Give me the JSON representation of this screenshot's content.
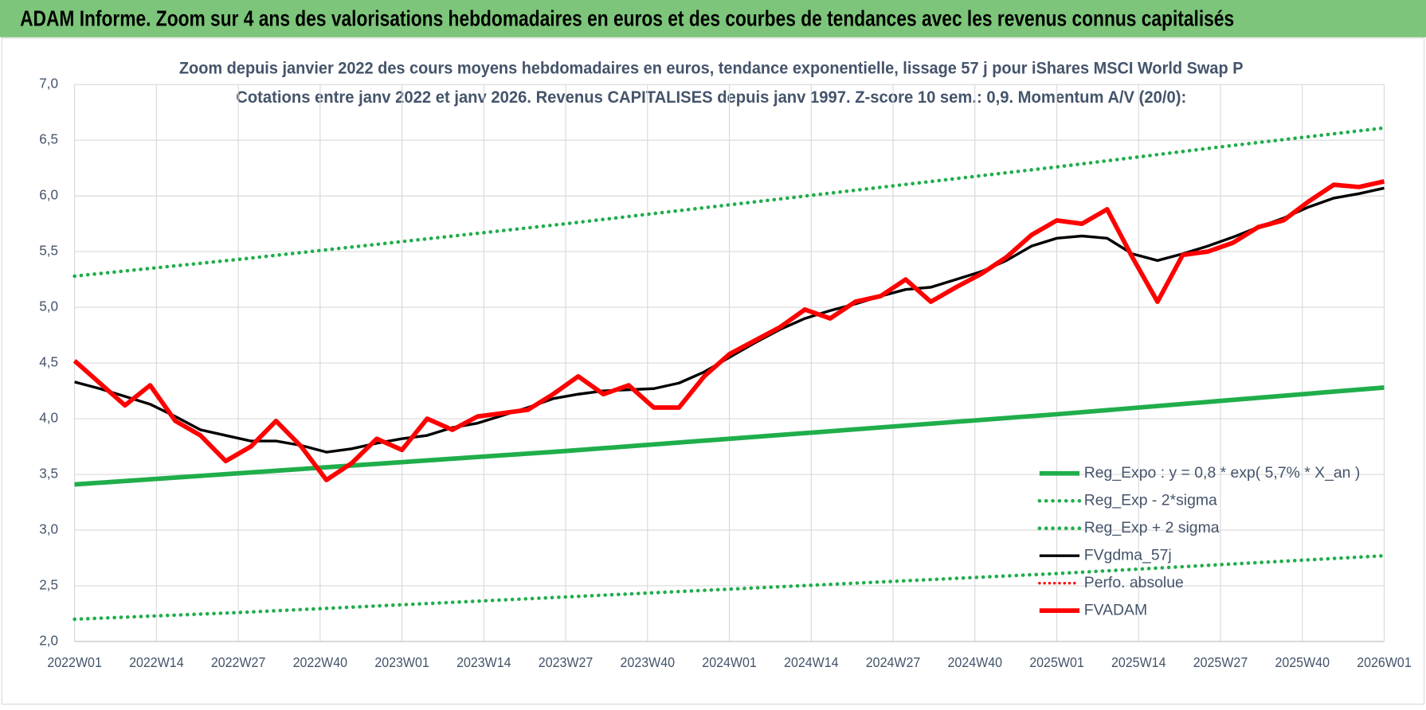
{
  "header": {
    "title": "ADAM Informe. Zoom sur 4 ans des valorisations hebdomadaires en euros et des courbes de tendances avec les revenus connus capitalisés"
  },
  "chart_data": {
    "type": "line",
    "title": "Zoom depuis janvier 2022 des cours moyens hebdomadaires en euros, tendance exponentielle, lissage 57 j pour iShares MSCI World Swap P",
    "subtitle": "Cotations entre janv 2022 et janv 2026. Revenus CAPITALISES depuis janv 1997. Z-score 10 sem.: 0,9. Momentum A/V (20/0):",
    "xlim": [
      0,
      208
    ],
    "xticks": [
      {
        "value": 0,
        "label": "2022W01"
      },
      {
        "value": 13,
        "label": "2022W14"
      },
      {
        "value": 26,
        "label": "2022W27"
      },
      {
        "value": 39,
        "label": "2022W40"
      },
      {
        "value": 52,
        "label": "2023W01"
      },
      {
        "value": 65,
        "label": "2023W14"
      },
      {
        "value": 78,
        "label": "2023W27"
      },
      {
        "value": 91,
        "label": "2023W40"
      },
      {
        "value": 104,
        "label": "2024W01"
      },
      {
        "value": 117,
        "label": "2024W14"
      },
      {
        "value": 130,
        "label": "2024W27"
      },
      {
        "value": 143,
        "label": "2024W40"
      },
      {
        "value": 156,
        "label": "2025W01"
      },
      {
        "value": 169,
        "label": "2025W14"
      },
      {
        "value": 182,
        "label": "2025W27"
      },
      {
        "value": 195,
        "label": "2025W40"
      },
      {
        "value": 208,
        "label": "2026W01"
      }
    ],
    "ylim": [
      2,
      7
    ],
    "yticks": [
      {
        "value": 2,
        "label": "2,0"
      },
      {
        "value": 2.5,
        "label": "2,5"
      },
      {
        "value": 3,
        "label": "3,0"
      },
      {
        "value": 3.5,
        "label": "3,5"
      },
      {
        "value": 4,
        "label": "4,0"
      },
      {
        "value": 4.5,
        "label": "4,5"
      },
      {
        "value": 5,
        "label": "5,0"
      },
      {
        "value": 5.5,
        "label": "5,5"
      },
      {
        "value": 6,
        "label": "6,0"
      },
      {
        "value": 6.5,
        "label": "6,5"
      },
      {
        "value": 7,
        "label": "7,0"
      }
    ],
    "grid": true,
    "legend": "bottom-right",
    "series": [
      {
        "name": "Reg_Expo : y = 0,8 * exp( 5,7% *  X_an )",
        "color": "#1fae4b",
        "style": "solid",
        "width": 5,
        "x": [
          0,
          26,
          52,
          78,
          104,
          130,
          156,
          182,
          208
        ],
        "values": [
          3.41,
          3.51,
          3.61,
          3.71,
          3.82,
          3.93,
          4.04,
          4.16,
          4.28
        ]
      },
      {
        "name": "Reg_Exp - 2*sigma",
        "color": "#1fae4b",
        "style": "dotted",
        "width": 4,
        "x": [
          0,
          26,
          52,
          78,
          104,
          130,
          156,
          182,
          208
        ],
        "values": [
          2.2,
          2.26,
          2.33,
          2.4,
          2.47,
          2.54,
          2.61,
          2.69,
          2.77
        ]
      },
      {
        "name": "Reg_Exp + 2 sigma",
        "color": "#1fae4b",
        "style": "dotted",
        "width": 4,
        "x": [
          0,
          26,
          52,
          78,
          104,
          130,
          156,
          182,
          208
        ],
        "values": [
          5.28,
          5.43,
          5.59,
          5.75,
          5.92,
          6.09,
          6.26,
          6.44,
          6.61
        ]
      },
      {
        "name": "FVgdma_57j",
        "color": "#000000",
        "style": "solid",
        "width": 3,
        "x": [
          0,
          4,
          8,
          12,
          16,
          20,
          24,
          28,
          32,
          36,
          40,
          44,
          48,
          52,
          56,
          60,
          64,
          68,
          72,
          76,
          80,
          84,
          88,
          92,
          96,
          100,
          104,
          108,
          112,
          116,
          120,
          124,
          128,
          132,
          136,
          140,
          144,
          148,
          152,
          156,
          160,
          164,
          168,
          172,
          176,
          180,
          184,
          188,
          192,
          196,
          200,
          204,
          208
        ],
        "values": [
          4.33,
          4.27,
          4.2,
          4.13,
          4.02,
          3.9,
          3.85,
          3.8,
          3.8,
          3.76,
          3.7,
          3.73,
          3.78,
          3.82,
          3.85,
          3.92,
          3.96,
          4.03,
          4.1,
          4.18,
          4.22,
          4.25,
          4.26,
          4.27,
          4.32,
          4.42,
          4.55,
          4.68,
          4.8,
          4.9,
          4.97,
          5.03,
          5.1,
          5.16,
          5.18,
          5.25,
          5.32,
          5.42,
          5.55,
          5.62,
          5.64,
          5.62,
          5.48,
          5.42,
          5.48,
          5.55,
          5.63,
          5.72,
          5.8,
          5.9,
          5.98,
          6.02,
          6.07
        ]
      },
      {
        "name": "Perfo. absolue",
        "color": "#ff0000",
        "style": "dotted",
        "width": 3,
        "x": [],
        "values": []
      },
      {
        "name": "FVADAM",
        "color": "#ff0000",
        "style": "solid",
        "width": 5,
        "x": [
          0,
          4,
          8,
          12,
          16,
          20,
          24,
          28,
          32,
          36,
          40,
          44,
          48,
          52,
          56,
          60,
          64,
          68,
          72,
          76,
          80,
          84,
          88,
          92,
          96,
          100,
          104,
          108,
          112,
          116,
          120,
          124,
          128,
          132,
          136,
          140,
          144,
          148,
          152,
          156,
          160,
          164,
          168,
          172,
          176,
          180,
          184,
          188,
          192,
          196,
          200,
          204,
          208
        ],
        "values": [
          4.52,
          4.32,
          4.12,
          4.3,
          3.98,
          3.85,
          3.62,
          3.75,
          3.98,
          3.75,
          3.45,
          3.6,
          3.82,
          3.72,
          4.0,
          3.9,
          4.02,
          4.05,
          4.08,
          4.22,
          4.38,
          4.22,
          4.3,
          4.1,
          4.1,
          4.38,
          4.58,
          4.7,
          4.82,
          4.98,
          4.9,
          5.05,
          5.1,
          5.25,
          5.05,
          5.18,
          5.3,
          5.45,
          5.65,
          5.78,
          5.75,
          5.88,
          5.45,
          5.05,
          5.47,
          5.5,
          5.58,
          5.72,
          5.78,
          5.95,
          6.1,
          6.08,
          6.13
        ]
      }
    ]
  }
}
